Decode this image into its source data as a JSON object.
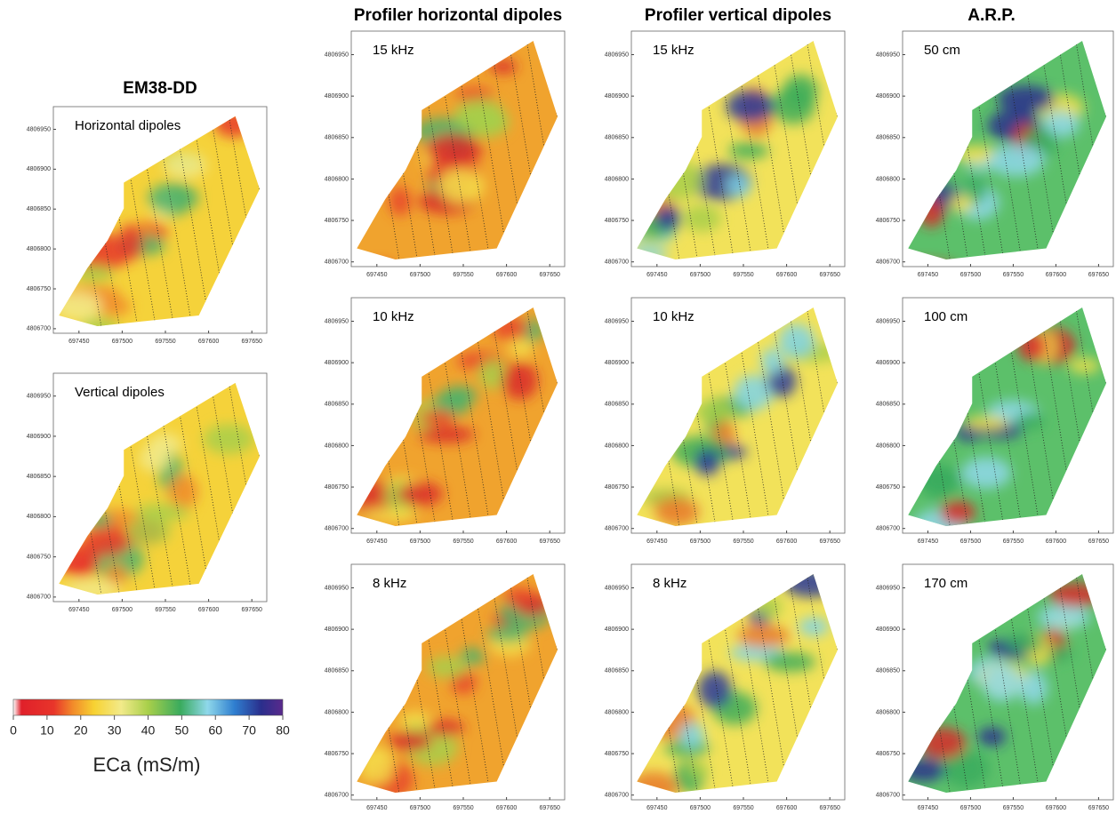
{
  "columns": [
    {
      "title": "EM38-DD",
      "panels": [
        {
          "label": "Horizontal dipoles"
        },
        {
          "label": "Vertical dipoles"
        }
      ]
    },
    {
      "title": "Profiler horizontal dipoles",
      "panels": [
        {
          "label": "15 kHz"
        },
        {
          "label": "10 kHz"
        },
        {
          "label": "8 kHz"
        }
      ]
    },
    {
      "title": "Profiler vertical dipoles",
      "panels": [
        {
          "label": "15 kHz"
        },
        {
          "label": "10 kHz"
        },
        {
          "label": "8 kHz"
        }
      ]
    },
    {
      "title": "A.R.P.",
      "panels": [
        {
          "label": "50 cm"
        },
        {
          "label": "100 cm"
        },
        {
          "label": "170 cm"
        }
      ]
    }
  ],
  "x_ticks": [
    697450,
    697500,
    697550,
    697600,
    697650
  ],
  "y_ticks": [
    4806700,
    4806750,
    4806800,
    4806850,
    4806900,
    4806950
  ],
  "colorbar": {
    "ticks": [
      0,
      10,
      20,
      30,
      40,
      50,
      60,
      70,
      80
    ],
    "label": "ECa (mS/m)"
  }
}
